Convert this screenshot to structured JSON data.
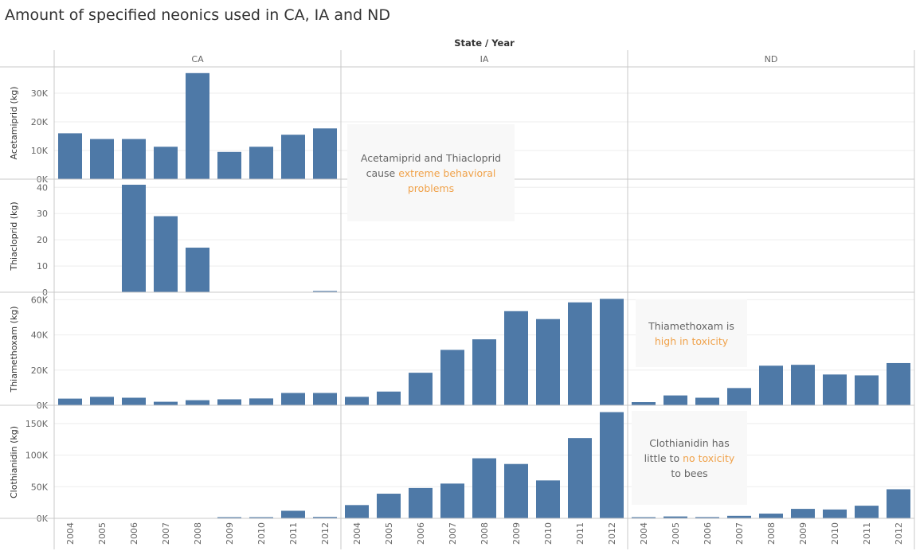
{
  "title": "Amount of specified neonics used in CA, IA and ND",
  "colors": {
    "bar": "#4e79a7",
    "highlight": "#f0a24a",
    "annotation_bg": "#f8f8f8"
  },
  "chart_data": {
    "type": "bar",
    "column_header": "State / Year",
    "states": [
      "CA",
      "IA",
      "ND"
    ],
    "years": [
      "2004",
      "2005",
      "2006",
      "2007",
      "2008",
      "2009",
      "2010",
      "2011",
      "2012"
    ],
    "rows": [
      {
        "label": "Acetamiprid (kg)",
        "ylim": [
          0,
          37500
        ],
        "ticks": [
          0,
          10000,
          20000,
          30000
        ],
        "tick_labels": [
          "0K",
          "10K",
          "20K",
          "30K"
        ],
        "values": {
          "CA": [
            16000,
            14000,
            14000,
            11300,
            37000,
            9500,
            11300,
            15500,
            17700
          ],
          "IA": [
            0,
            0,
            0,
            0,
            0,
            0,
            0,
            0,
            0
          ],
          "ND": [
            0,
            0,
            0,
            0,
            0,
            0,
            0,
            0,
            0
          ]
        }
      },
      {
        "label": "Thiacloprid (kg)",
        "ylim": [
          0,
          41
        ],
        "ticks": [
          0,
          10,
          20,
          30,
          40
        ],
        "tick_labels": [
          "0",
          "10",
          "20",
          "30",
          "40"
        ],
        "values": {
          "CA": [
            0,
            0,
            41,
            29,
            17,
            0,
            0,
            0,
            0.4
          ],
          "IA": [
            0,
            0,
            0,
            0,
            0,
            0,
            0,
            0,
            0
          ],
          "ND": [
            0,
            0,
            0,
            0,
            0,
            0,
            0,
            0,
            0
          ]
        }
      },
      {
        "label": "Thiamethoxam (kg)",
        "ylim": [
          0,
          62000
        ],
        "ticks": [
          0,
          20000,
          40000,
          60000
        ],
        "tick_labels": [
          "0K",
          "20K",
          "40K",
          "60K"
        ],
        "values": {
          "CA": [
            3800,
            4800,
            4300,
            2000,
            2900,
            3400,
            3900,
            7000,
            7000
          ],
          "IA": [
            4800,
            7800,
            18500,
            31500,
            37500,
            53500,
            49000,
            58500,
            60500
          ],
          "ND": [
            1800,
            5600,
            4300,
            9800,
            22500,
            23000,
            17500,
            17000,
            24000
          ]
        }
      },
      {
        "label": "Clothianidin (kg)",
        "ylim": [
          0,
          170000
        ],
        "ticks": [
          0,
          50000,
          100000,
          150000
        ],
        "tick_labels": [
          "0K",
          "50K",
          "100K",
          "150K"
        ],
        "values": {
          "CA": [
            0,
            0,
            0,
            0,
            0,
            1200,
            900,
            12000,
            2200
          ],
          "IA": [
            21000,
            39000,
            48000,
            55000,
            95000,
            86000,
            60000,
            127000,
            168000
          ],
          "ND": [
            600,
            3000,
            2000,
            4000,
            7500,
            15000,
            14000,
            20000,
            46000
          ]
        }
      }
    ],
    "annotations": [
      {
        "text_parts": [
          "Acetamiprid and Thiacloprid\ncause ",
          "extreme behavioral\nproblems"
        ]
      },
      {
        "text_parts": [
          "Thiamethoxam is\n",
          "high in toxicity"
        ]
      },
      {
        "text_parts": [
          "Clothianidin has\nlittle to ",
          "no toxicity",
          "\nto bees"
        ]
      }
    ]
  }
}
